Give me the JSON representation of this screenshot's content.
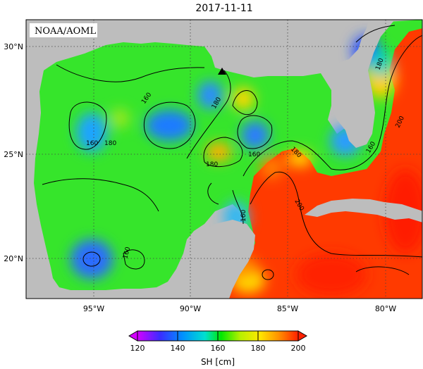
{
  "title": "2017-11-11",
  "credit": "NOAA/AOML",
  "map": {
    "lat_ticks": [
      "30°N",
      "25°N",
      "20°N"
    ],
    "lon_ticks": [
      "95°W",
      "90°W",
      "85°W",
      "80°W"
    ],
    "contour_labels": [
      "160",
      "160",
      "180",
      "180",
      "160",
      "160",
      "180",
      "180",
      "200",
      "200",
      "160",
      "160",
      "180"
    ]
  },
  "colorbar": {
    "label": "SH [cm]",
    "ticks": [
      "120",
      "140",
      "160",
      "180",
      "200"
    ],
    "range": [
      120,
      200
    ],
    "colors": [
      "#d400ff",
      "#3a2cff",
      "#0090ff",
      "#00e0d0",
      "#00e800",
      "#b8f000",
      "#ffe800",
      "#ff9000",
      "#ff2000"
    ]
  },
  "colors": {
    "land": "#bdbdbd",
    "background_field": "#33e52b",
    "frame": "#000000"
  }
}
